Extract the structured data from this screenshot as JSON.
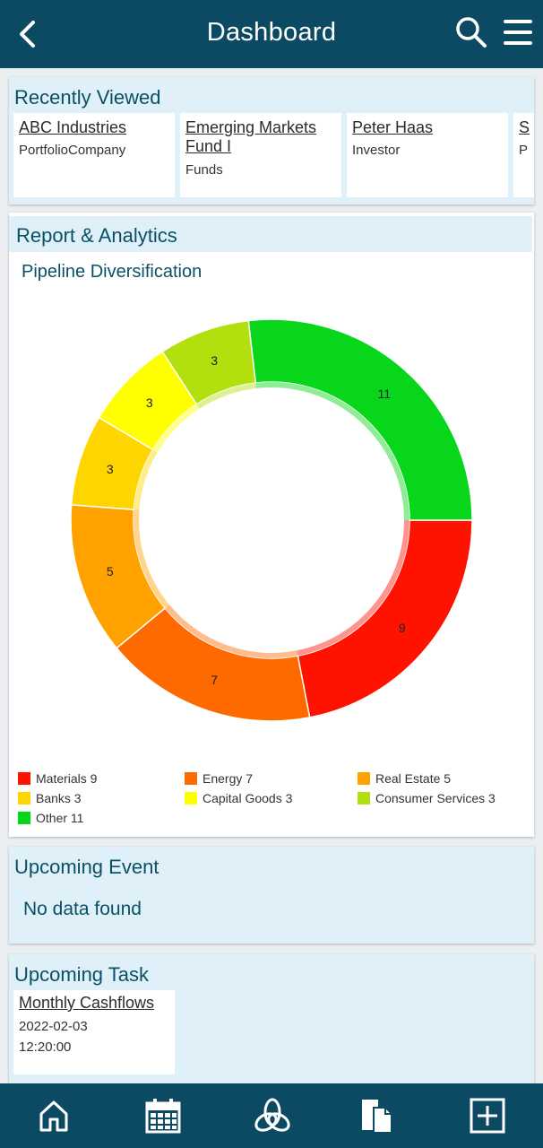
{
  "header": {
    "title": "Dashboard",
    "back_icon": "chevron-left-icon",
    "search_icon": "search-icon",
    "menu_icon": "hamburger-menu-icon"
  },
  "recently_viewed": {
    "title": "Recently Viewed",
    "items": [
      {
        "name": "ABC Industries",
        "type": "PortfolioCompany"
      },
      {
        "name": "Emerging Markets Fund I",
        "type": "Funds"
      },
      {
        "name": "Peter Haas",
        "type": "Investor"
      },
      {
        "name": "S",
        "type": "P"
      }
    ]
  },
  "report": {
    "title": "Report & Analytics",
    "subtitle": "Pipeline Diversification"
  },
  "chart_data": {
    "type": "pie",
    "title": "Pipeline Diversification",
    "donut": true,
    "legend_position": "bottom",
    "categories": [
      "Materials",
      "Energy",
      "Real Estate",
      "Banks",
      "Capital Goods",
      "Consumer Services",
      "Other"
    ],
    "values": [
      9,
      7,
      5,
      3,
      3,
      3,
      11
    ],
    "legend_labels": [
      "Materials 9",
      "Energy 7",
      "Real Estate 5",
      "Banks 3",
      "Capital Goods 3",
      "Consumer Services 3",
      "Other 11"
    ],
    "colors": [
      "#ff1200",
      "#ff6a00",
      "#ffa200",
      "#ffd500",
      "#ffff00",
      "#b2e00f",
      "#07d61a"
    ]
  },
  "upcoming_event": {
    "title": "Upcoming Event",
    "empty_text": "No data found"
  },
  "upcoming_task": {
    "title": "Upcoming Task",
    "items": [
      {
        "name": "Monthly Cashflows",
        "date": "2022-02-03",
        "time": "12:20:00"
      }
    ]
  },
  "bottom_nav": [
    "home-icon",
    "calendar-icon",
    "network-icon",
    "documents-icon",
    "add-icon"
  ],
  "colors": {
    "bar": "#0c4a63",
    "accent_text": "#0b5066",
    "panel": "#dff0f8"
  }
}
